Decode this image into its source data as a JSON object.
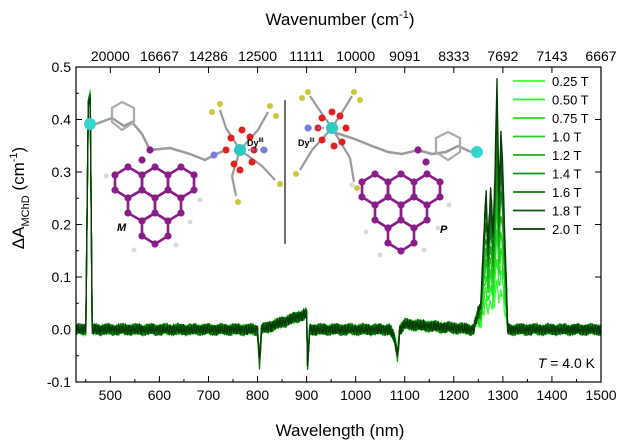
{
  "chart_data": {
    "type": "line",
    "title": "",
    "xlabel": "Wavelength (nm)",
    "ylabel": "ΔA",
    "ylabel_sub": "MChD",
    "ylabel_unit": "(cm",
    "ylabel_unit_exp": "-1",
    "ylabel_unit_end": ")",
    "top_xlabel": "Wavenumber (cm",
    "top_xlabel_exp": "-1",
    "top_xlabel_end": ")",
    "xlim": [
      430,
      1500
    ],
    "ylim": [
      -0.1,
      0.5
    ],
    "x_ticks": [
      500,
      600,
      700,
      800,
      900,
      1000,
      1100,
      1200,
      1300,
      1400,
      1500
    ],
    "y_ticks": [
      -0.1,
      0.0,
      0.1,
      0.2,
      0.3,
      0.4,
      0.5
    ],
    "y_tick_labels": [
      "-0.1",
      "0.0",
      "0.1",
      "0.2",
      "0.3",
      "0.4",
      "0.5"
    ],
    "top_x_ticks": [
      {
        "nm": 500,
        "label": "20000"
      },
      {
        "nm": 600,
        "label": "16667"
      },
      {
        "nm": 700,
        "label": "14286"
      },
      {
        "nm": 800,
        "label": "12500"
      },
      {
        "nm": 900,
        "label": "11111"
      },
      {
        "nm": 1000,
        "label": "10000"
      },
      {
        "nm": 1100,
        "label": "9091"
      },
      {
        "nm": 1200,
        "label": "8333"
      },
      {
        "nm": 1300,
        "label": "7692"
      },
      {
        "nm": 1400,
        "label": "7143"
      },
      {
        "nm": 1500,
        "label": "6667"
      }
    ],
    "grid": false,
    "legend_placement": "top-right",
    "annotation": {
      "italic": "T",
      "rest": " = 4.0 K"
    },
    "key_points": [
      [
        430,
        0.0
      ],
      [
        450,
        0.0
      ],
      [
        455,
        0.43
      ],
      [
        459,
        0.445
      ],
      [
        463,
        0.0
      ],
      [
        470,
        0.0
      ],
      [
        800,
        0.0
      ],
      [
        804,
        -0.065
      ],
      [
        808,
        0.0
      ],
      [
        900,
        0.03
      ],
      [
        902,
        -0.07
      ],
      [
        906,
        0.0
      ],
      [
        1070,
        0.0
      ],
      [
        1080,
        -0.02
      ],
      [
        1085,
        -0.05
      ],
      [
        1090,
        0.0
      ],
      [
        1100,
        0.01
      ],
      [
        1240,
        0.0
      ],
      [
        1255,
        0.05
      ],
      [
        1262,
        0.2
      ],
      [
        1266,
        0.26
      ],
      [
        1270,
        0.16
      ],
      [
        1275,
        0.275
      ],
      [
        1280,
        0.18
      ],
      [
        1284,
        0.3
      ],
      [
        1288,
        0.48
      ],
      [
        1292,
        0.25
      ],
      [
        1296,
        0.38
      ],
      [
        1300,
        0.3
      ],
      [
        1304,
        0.18
      ],
      [
        1310,
        0.0
      ],
      [
        1500,
        0.0
      ]
    ],
    "series": [
      {
        "name": "0.25 T",
        "color": "#33ff33",
        "scale": 0.2
      },
      {
        "name": "0.50 T",
        "color": "#2bef2b",
        "scale": 0.3
      },
      {
        "name": "0.75 T",
        "color": "#22dd22",
        "scale": 0.4
      },
      {
        "name": "1.0 T",
        "color": "#1ccc1c",
        "scale": 0.5
      },
      {
        "name": "1.2 T",
        "color": "#17b017",
        "scale": 0.6
      },
      {
        "name": "1.4 T",
        "color": "#129512",
        "scale": 0.7
      },
      {
        "name": "1.6 T",
        "color": "#0e7a0e",
        "scale": 0.8
      },
      {
        "name": "1.8 T",
        "color": "#0a5a0a",
        "scale": 0.9
      },
      {
        "name": "2.0 T",
        "color": "#063a06",
        "scale": 1.0
      }
    ],
    "inset": {
      "left_label": "M",
      "right_label": "P",
      "ion_label": "Dy",
      "ion_superscript": "III"
    }
  }
}
